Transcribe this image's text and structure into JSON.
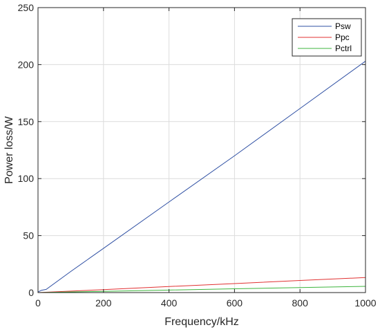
{
  "chart_data": {
    "type": "line",
    "title": "",
    "xlabel": "Frequency/kHz",
    "ylabel": "Power loss/W",
    "xlim": [
      0,
      1000
    ],
    "ylim": [
      0,
      250
    ],
    "xticks": [
      0,
      200,
      400,
      600,
      800,
      1000
    ],
    "yticks": [
      0,
      50,
      100,
      150,
      200,
      250
    ],
    "xtick_labels": [
      "0",
      "200",
      "400",
      "600",
      "800",
      "1000"
    ],
    "ytick_labels": [
      "0",
      "50",
      "100",
      "150",
      "200",
      "250"
    ],
    "grid": true,
    "legend_position": "top-right",
    "series": [
      {
        "name": "Psw",
        "color": "#2e4fa3",
        "x": [
          0,
          10,
          25,
          100,
          200,
          400,
          600,
          800,
          1000
        ],
        "y": [
          0.5,
          2.0,
          2.8,
          18.5,
          38.8,
          79.5,
          120.0,
          161.5,
          203.0
        ]
      },
      {
        "name": "Ppc",
        "color": "#e03030",
        "x": [
          0,
          200,
          400,
          600,
          800,
          1000
        ],
        "y": [
          0.0,
          2.6,
          5.3,
          7.9,
          10.6,
          13.2
        ]
      },
      {
        "name": "Pctrl",
        "color": "#3cb43c",
        "x": [
          0,
          200,
          400,
          600,
          800,
          1000
        ],
        "y": [
          0.0,
          1.1,
          2.2,
          3.3,
          4.4,
          5.5
        ]
      }
    ]
  }
}
